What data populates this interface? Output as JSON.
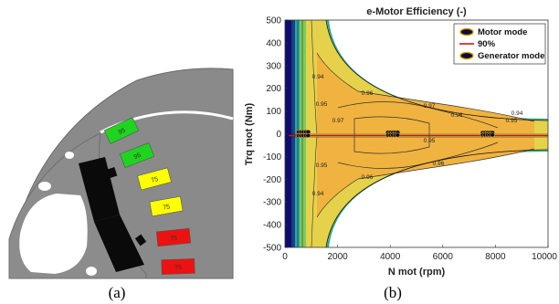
{
  "panels": {
    "a": {
      "label": "(a)",
      "slots": [
        {
          "text": "95",
          "color": "#1fd41f"
        },
        {
          "text": "95",
          "color": "#1fd41f"
        },
        {
          "text": "75",
          "color": "#ffff00"
        },
        {
          "text": "75",
          "color": "#ffff00"
        },
        {
          "text": "75",
          "color": "#ee1111"
        },
        {
          "text": "75",
          "color": "#ee1111"
        }
      ]
    },
    "b": {
      "label": "(b)",
      "title": "e-Motor Efficiency (-)",
      "xlabel": "N mot (rpm)",
      "ylabel": "Trq mot (Nm)",
      "xticks": [
        "0",
        "2000",
        "4000",
        "6000",
        "8000",
        "10000"
      ],
      "yticks": [
        "500",
        "400",
        "300",
        "200",
        "100",
        "0",
        "-100",
        "-200",
        "-300",
        "-400",
        "-500"
      ],
      "legend": [
        {
          "label": "Motor mode",
          "icon": "ellipse-marker-icon"
        },
        {
          "label": "90%",
          "icon": "red-line-icon"
        },
        {
          "label": "Generator mode",
          "icon": "ellipse-marker-icon"
        }
      ],
      "contour_labels": [
        "0.96",
        "0.97",
        "0.95",
        "0.94",
        "0.96",
        "0.97",
        "0.95",
        "0.94",
        "0.96",
        "0.96",
        "0.95",
        "0.95",
        "0.94"
      ]
    }
  },
  "chart_data": {
    "type": "heatmap",
    "title": "e-Motor Efficiency (-)",
    "xlabel": "N mot (rpm)",
    "ylabel": "Trq mot (Nm)",
    "xlim": [
      0,
      10000
    ],
    "ylim": [
      -500,
      500
    ],
    "series": [
      {
        "name": "Motor mode",
        "points": [
          [
            700,
            8
          ],
          [
            4100,
            6
          ],
          [
            7700,
            5
          ]
        ]
      },
      {
        "name": "90%",
        "y": 0
      },
      {
        "name": "Generator mode",
        "points": [
          [
            700,
            -8
          ],
          [
            4100,
            -6
          ],
          [
            7700,
            -5
          ]
        ]
      }
    ],
    "contour_levels": [
      0.94,
      0.95,
      0.96,
      0.97
    ],
    "legend_position": "top-right",
    "colormap": [
      "#0d0d70",
      "#1a4fa0",
      "#26a6a6",
      "#7ccc5a",
      "#e6d24a",
      "#f0b340"
    ]
  }
}
